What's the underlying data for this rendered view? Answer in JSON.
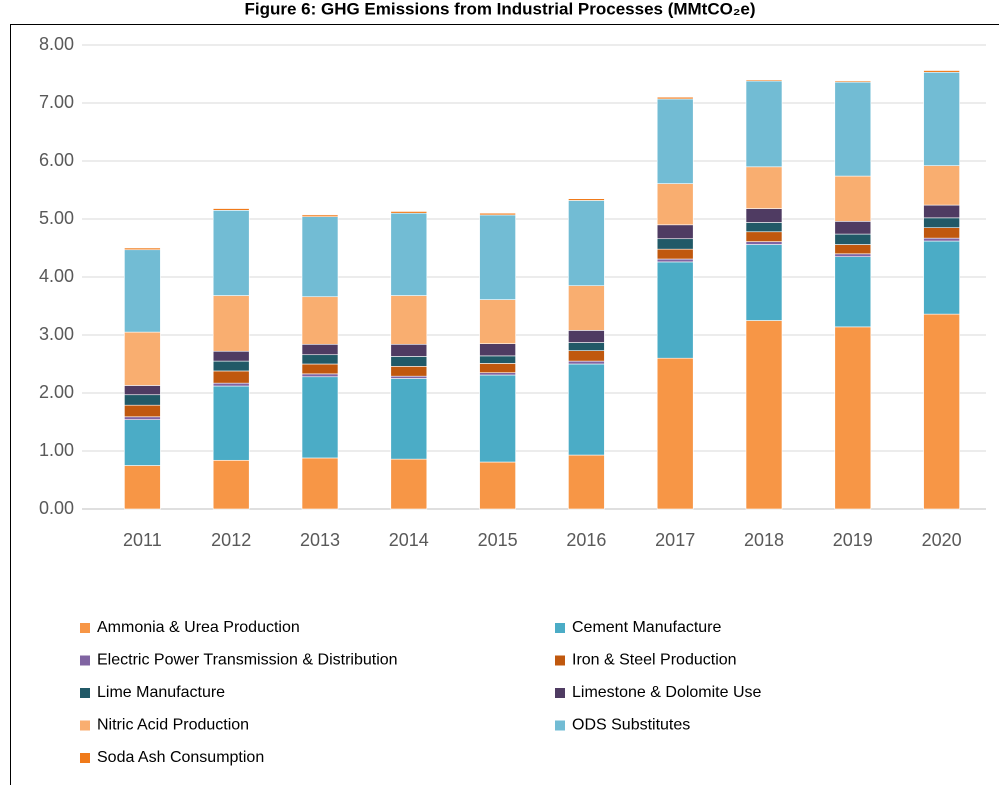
{
  "chart_data": {
    "type": "stacked_bar",
    "title": "Figure 6: GHG Emissions from Industrial Processes (MMtCO₂e)",
    "categories": [
      "2011",
      "2012",
      "2013",
      "2014",
      "2015",
      "2016",
      "2017",
      "2018",
      "2019",
      "2020"
    ],
    "series": [
      {
        "name": "Ammonia & Urea Production",
        "color": "#f79646",
        "values": [
          0.75,
          0.84,
          0.88,
          0.86,
          0.81,
          0.93,
          2.6,
          3.25,
          3.14,
          3.36
        ]
      },
      {
        "name": "Cement Manufacture",
        "color": "#4bacc6",
        "values": [
          0.79,
          1.28,
          1.4,
          1.39,
          1.5,
          1.57,
          1.66,
          1.31,
          1.21,
          1.26
        ]
      },
      {
        "name": "Electric Power Transmission & Distribution",
        "color": "#8064a2",
        "values": [
          0.05,
          0.05,
          0.05,
          0.04,
          0.04,
          0.05,
          0.05,
          0.05,
          0.05,
          0.05
        ]
      },
      {
        "name": "Iron & Steel Production",
        "color": "#c0580e",
        "values": [
          0.2,
          0.21,
          0.17,
          0.17,
          0.16,
          0.18,
          0.17,
          0.17,
          0.16,
          0.18
        ]
      },
      {
        "name": "Lime Manufacture",
        "color": "#215967",
        "values": [
          0.18,
          0.17,
          0.16,
          0.17,
          0.13,
          0.14,
          0.18,
          0.16,
          0.18,
          0.17
        ]
      },
      {
        "name": "Limestone & Dolomite Use",
        "color": "#4f3b62",
        "values": [
          0.16,
          0.17,
          0.18,
          0.21,
          0.21,
          0.21,
          0.24,
          0.24,
          0.22,
          0.22
        ]
      },
      {
        "name": "Nitric Acid Production",
        "color": "#f9ae70",
        "values": [
          0.92,
          0.96,
          0.82,
          0.84,
          0.76,
          0.77,
          0.71,
          0.72,
          0.78,
          0.68
        ]
      },
      {
        "name": "ODS Substitutes",
        "color": "#72bcd4",
        "values": [
          1.42,
          1.47,
          1.38,
          1.42,
          1.46,
          1.47,
          1.46,
          1.48,
          1.62,
          1.61
        ]
      },
      {
        "name": "Soda Ash Consumption",
        "color": "#f07a1a",
        "values": [
          0.03,
          0.03,
          0.03,
          0.03,
          0.03,
          0.03,
          0.03,
          0.02,
          0.02,
          0.03
        ]
      }
    ],
    "ylim": [
      0,
      8
    ],
    "yticks": [
      {
        "value": 0,
        "label": "0.00"
      },
      {
        "value": 1,
        "label": "1.00"
      },
      {
        "value": 2,
        "label": "2.00"
      },
      {
        "value": 3,
        "label": "3.00"
      },
      {
        "value": 4,
        "label": "4.00"
      },
      {
        "value": 5,
        "label": "5.00"
      },
      {
        "value": 6,
        "label": "6.00"
      },
      {
        "value": 7,
        "label": "7.00"
      },
      {
        "value": 8,
        "label": "8.00"
      }
    ],
    "grid": true,
    "legend": "bottom"
  }
}
